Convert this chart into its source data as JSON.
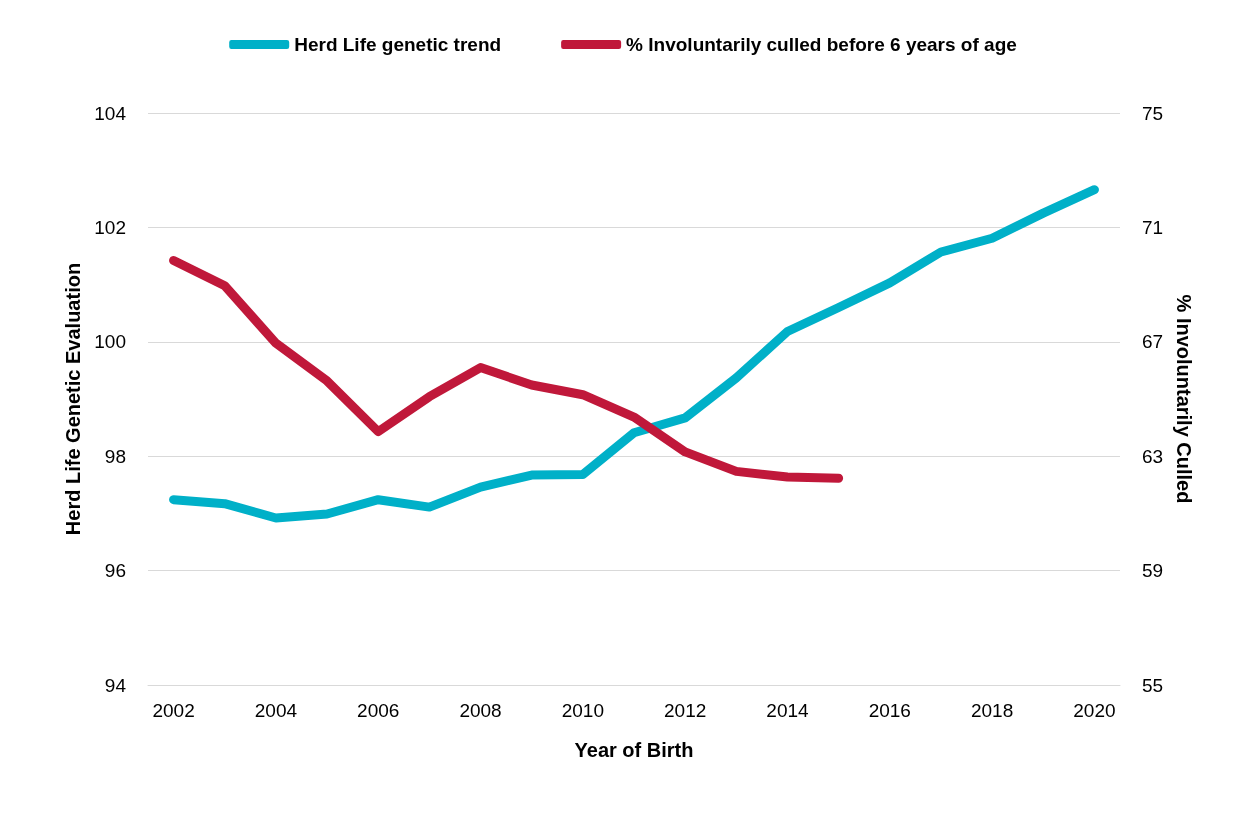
{
  "chart_data": {
    "type": "line",
    "xlabel": "Year of Birth",
    "ylabel": "Herd Life Genetic Evaluation",
    "y2label": "% Involuntarily Culled",
    "categories": [
      "2002",
      null,
      "2004",
      null,
      "2006",
      null,
      "2008",
      null,
      "2010",
      null,
      "2012",
      null,
      "2014",
      null,
      "2016",
      null,
      "2018",
      null,
      "2020"
    ],
    "series": [
      {
        "name": "Herd Life genetic trend",
        "color": "#00b0c8",
        "values": [
          97.24,
          97.17,
          96.92,
          96.99,
          97.24,
          97.11,
          97.46,
          97.67,
          97.68,
          98.41,
          98.67,
          99.37,
          100.18,
          100.6,
          101.03,
          101.57,
          101.81,
          102.25,
          102.66
        ]
      },
      {
        "name": "% Involuntarily culled before 6 years of age",
        "color": "#c0183a",
        "axis": "y2",
        "values": [
          69.84,
          68.96,
          66.95,
          65.63,
          63.86,
          65.08,
          66.1,
          65.49,
          65.15,
          64.37,
          63.15,
          62.47,
          62.27,
          62.23,
          null,
          null,
          null,
          null,
          null
        ]
      }
    ],
    "ylim": [
      94,
      104
    ],
    "yticks": [
      94,
      96,
      98,
      100,
      102,
      104
    ],
    "y2lim": [
      55,
      75
    ],
    "y2ticks": [
      55,
      59,
      63,
      67,
      71,
      75
    ],
    "grid": "y",
    "legend": "top",
    "marker": "none",
    "line_style": "solid"
  }
}
